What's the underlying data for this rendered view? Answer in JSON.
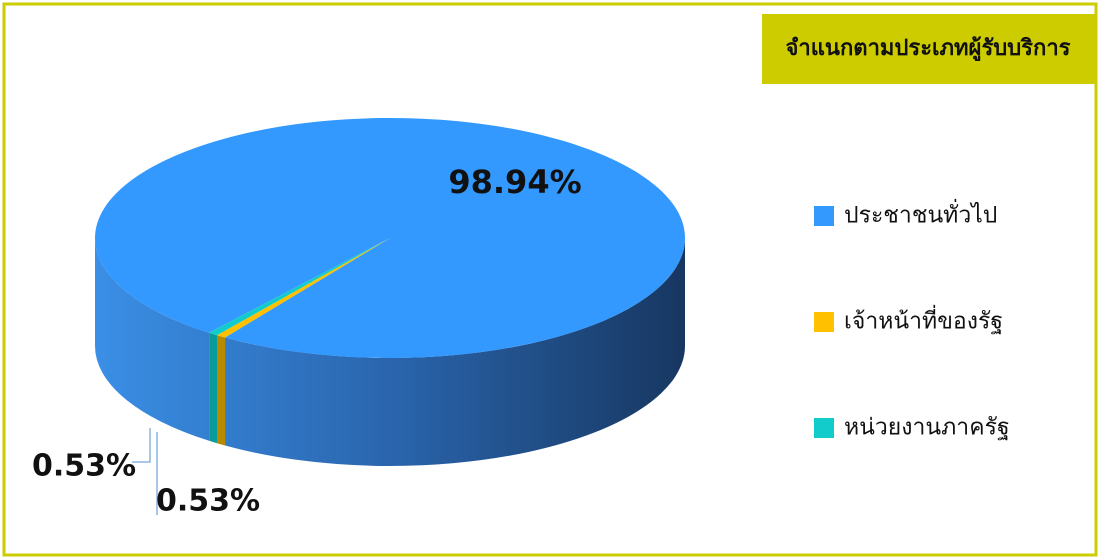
{
  "chart_data": {
    "type": "pie3d",
    "title": "จำแนกตามประเภทผู้รับบริการ",
    "categories": [
      "ประชาชนทั่วไป",
      "เจ้าหน้าที่ของรัฐ",
      "หน่วยงานภาครัฐ"
    ],
    "values": [
      98.94,
      0.53,
      0.53
    ],
    "value_labels": [
      "98.94%",
      "0.53%",
      "0.53%"
    ],
    "colors": [
      "#3399ff",
      "#ffc000",
      "#12cccc"
    ],
    "legend": "right"
  }
}
